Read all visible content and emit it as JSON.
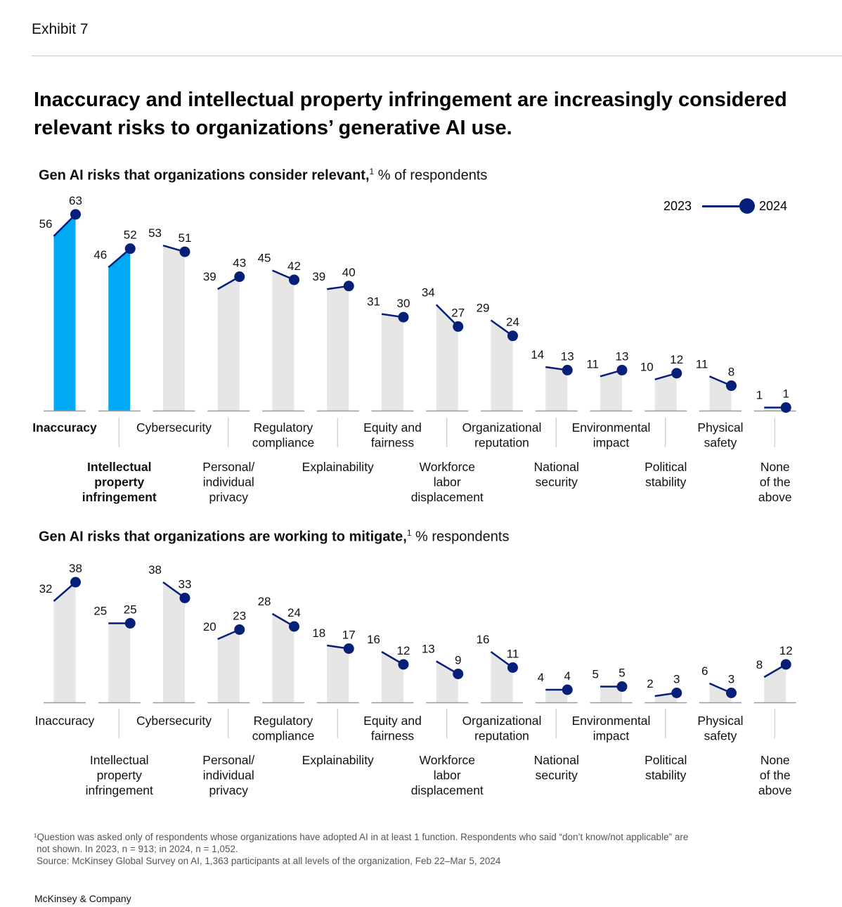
{
  "exhibit": "Exhibit 7",
  "headline": "Inaccuracy and intellectual property infringement are increasingly considered relevant risks to organizations’ generative AI use.",
  "legend": {
    "year1": "2023",
    "year2": "2024"
  },
  "colors": {
    "highlight": "#00a9f4",
    "bar": "#e6e6e6",
    "line": "#061f79",
    "axis": "#9a9a9a",
    "divider": "#bdbdbd"
  },
  "chart_data": [
    {
      "type": "bar",
      "title_bold": "Gen AI risks that organizations consider relevant,",
      "title_sup": "1",
      "title_rest": " % of respondents",
      "categories": [
        "Inaccuracy",
        "Intellectual property infringement",
        "Cybersecurity",
        "Personal/ individual privacy",
        "Regulatory compliance",
        "Explainability",
        "Equity and fairness",
        "Workforce labor displacement",
        "Organizational reputation",
        "National security",
        "Environmental impact",
        "Political stability",
        "Physical safety",
        "None of the above"
      ],
      "label_lines": [
        [
          "Inaccuracy"
        ],
        [
          "Intellectual",
          "property",
          "infringement"
        ],
        [
          "Cybersecurity"
        ],
        [
          "Personal/",
          "individual",
          "privacy"
        ],
        [
          "Regulatory",
          "compliance"
        ],
        [
          "Explainability"
        ],
        [
          "Equity and",
          "fairness"
        ],
        [
          "Workforce",
          "labor",
          "displacement"
        ],
        [
          "Organizational",
          "reputation"
        ],
        [
          "National",
          "security"
        ],
        [
          "Environmental",
          "impact"
        ],
        [
          "Political",
          "stability"
        ],
        [
          "Physical",
          "safety"
        ],
        [
          "None",
          "of the",
          "above"
        ]
      ],
      "series": [
        {
          "name": "2023",
          "values": [
            56,
            46,
            53,
            39,
            45,
            39,
            31,
            34,
            29,
            14,
            11,
            10,
            11,
            1
          ]
        },
        {
          "name": "2024",
          "values": [
            63,
            52,
            51,
            43,
            42,
            40,
            30,
            27,
            24,
            13,
            13,
            12,
            8,
            1
          ]
        }
      ],
      "highlight": [
        0,
        1
      ],
      "bold_labels": [
        0,
        1
      ],
      "ylabel": "% of respondents",
      "ylim": [
        0,
        70
      ]
    },
    {
      "type": "bar",
      "title_bold": "Gen AI risks that organizations are working to mitigate,",
      "title_sup": "1",
      "title_rest": " % respondents",
      "categories": [
        "Inaccuracy",
        "Intellectual property infringement",
        "Cybersecurity",
        "Personal/ individual privacy",
        "Regulatory compliance",
        "Explainability",
        "Equity and fairness",
        "Workforce labor displacement",
        "Organizational reputation",
        "National security",
        "Environmental impact",
        "Political stability",
        "Physical safety",
        "None of the above"
      ],
      "label_lines": [
        [
          "Inaccuracy"
        ],
        [
          "Intellectual",
          "property",
          "infringement"
        ],
        [
          "Cybersecurity"
        ],
        [
          "Personal/",
          "individual",
          "privacy"
        ],
        [
          "Regulatory",
          "compliance"
        ],
        [
          "Explainability"
        ],
        [
          "Equity and",
          "fairness"
        ],
        [
          "Workforce",
          "labor",
          "displacement"
        ],
        [
          "Organizational",
          "reputation"
        ],
        [
          "National",
          "security"
        ],
        [
          "Environmental",
          "impact"
        ],
        [
          "Political",
          "stability"
        ],
        [
          "Physical",
          "safety"
        ],
        [
          "None",
          "of the",
          "above"
        ]
      ],
      "series": [
        {
          "name": "2023",
          "values": [
            32,
            25,
            38,
            20,
            28,
            18,
            16,
            13,
            16,
            4,
            5,
            2,
            6,
            8
          ]
        },
        {
          "name": "2024",
          "values": [
            38,
            25,
            33,
            23,
            24,
            17,
            12,
            9,
            11,
            4,
            5,
            3,
            3,
            12
          ]
        }
      ],
      "highlight": [],
      "bold_labels": [],
      "ylabel": "% respondents",
      "ylim": [
        0,
        45
      ]
    }
  ],
  "footnote": {
    "line1": "¹Question was asked only of respondents whose organizations have adopted AI in at least 1 function. Respondents who said “don’t know/not applicable” are",
    "line2": "not shown. In 2023, n = 913; in 2024, n = 1,052.",
    "line3": "Source: McKinsey Global Survey on AI, 1,363 participants at all levels of the organization, Feb 22–Mar 5, 2024"
  },
  "brand": "McKinsey & Company"
}
